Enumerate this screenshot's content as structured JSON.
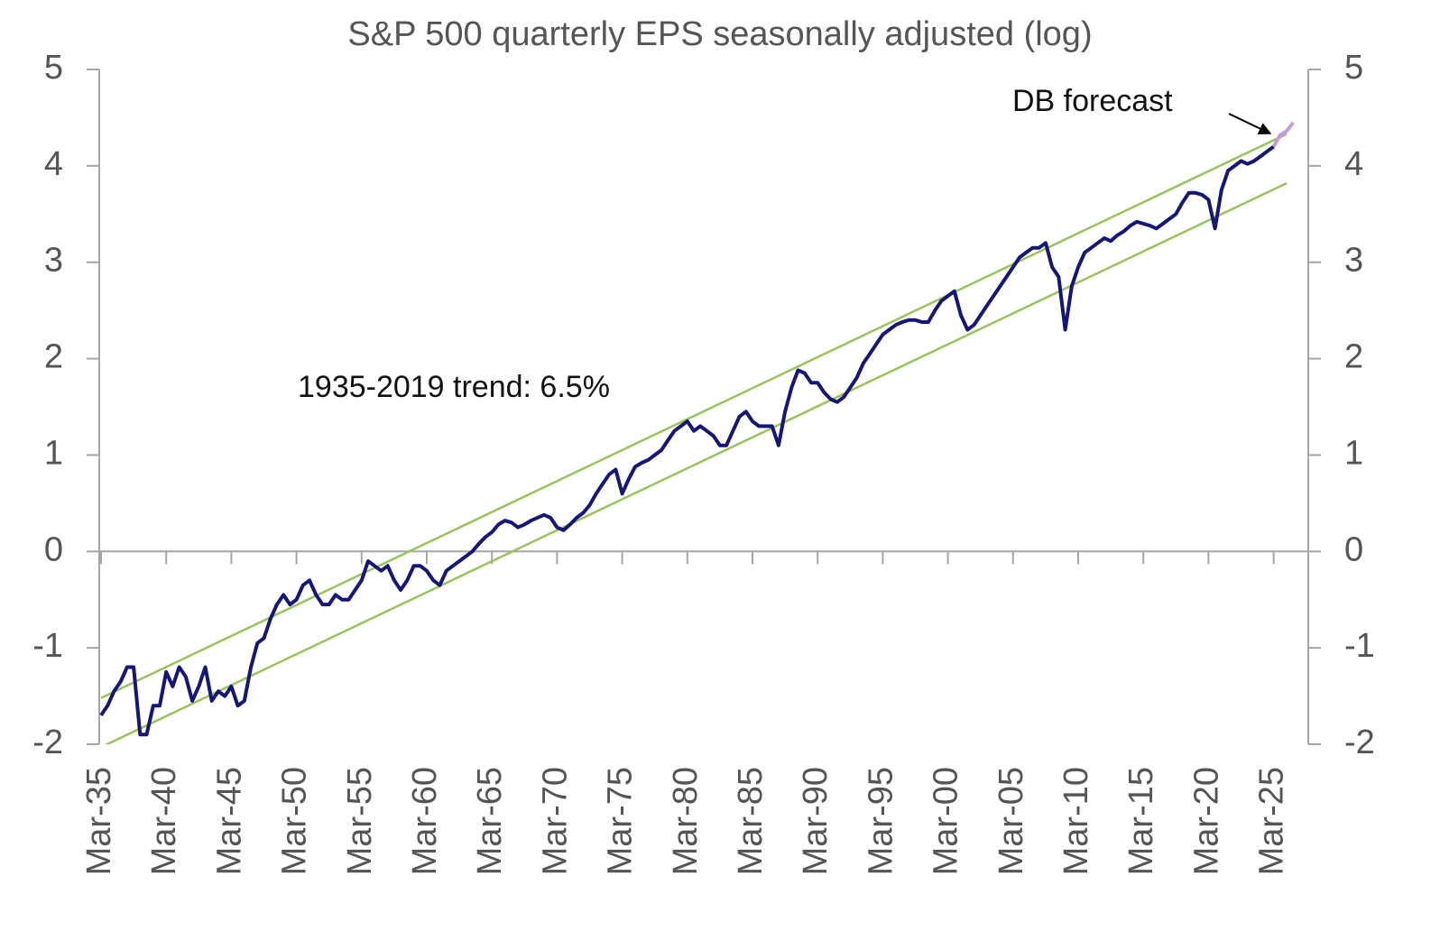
{
  "chart_data": {
    "type": "line",
    "title": "S&P 500 quarterly EPS seasonally adjusted (log)",
    "annotations": [
      "1935-2019 trend: 6.5%",
      "DB forecast"
    ],
    "categories": [
      "Mar-35",
      null,
      null,
      null,
      null,
      null,
      null,
      null,
      null,
      null,
      "Mar-40",
      null,
      null,
      null,
      null,
      null,
      null,
      null,
      null,
      null,
      "Mar-45",
      null,
      null,
      null,
      null,
      null,
      null,
      null,
      null,
      null,
      "Mar-50",
      null,
      null,
      null,
      null,
      null,
      null,
      null,
      null,
      null,
      "Mar-55",
      null,
      null,
      null,
      null,
      null,
      null,
      null,
      null,
      null,
      "Mar-60",
      null,
      null,
      null,
      null,
      null,
      null,
      null,
      null,
      null,
      "Mar-65",
      null,
      null,
      null,
      null,
      null,
      null,
      null,
      null,
      null,
      "Mar-70",
      null,
      null,
      null,
      null,
      null,
      null,
      null,
      null,
      null,
      "Mar-75",
      null,
      null,
      null,
      null,
      null,
      null,
      null,
      null,
      null,
      "Mar-80",
      null,
      null,
      null,
      null,
      null,
      null,
      null,
      null,
      null,
      "Mar-85",
      null,
      null,
      null,
      null,
      null,
      null,
      null,
      null,
      null,
      "Mar-90",
      null,
      null,
      null,
      null,
      null,
      null,
      null,
      null,
      null,
      "Mar-95",
      null,
      null,
      null,
      null,
      null,
      null,
      null,
      null,
      null,
      "Mar-00",
      null,
      null,
      null,
      null,
      null,
      null,
      null,
      null,
      null,
      "Mar-05",
      null,
      null,
      null,
      null,
      null,
      null,
      null,
      null,
      null,
      "Mar-10",
      null,
      null,
      null,
      null,
      null,
      null,
      null,
      null,
      null,
      "Mar-15",
      null,
      null,
      null,
      null,
      null,
      null,
      null,
      null,
      null,
      "Mar-20",
      null,
      null,
      null,
      null,
      null,
      null,
      null,
      null,
      null,
      "Mar-25",
      null,
      null,
      null,
      null,
      null
    ],
    "series": [
      {
        "color": "#16167a",
        "values": [
          -1.7,
          -1.6,
          -1.45,
          -1.35,
          -1.2,
          -1.2,
          -1.9,
          -1.9,
          -1.6,
          -1.6,
          -1.25,
          -1.4,
          -1.2,
          -1.3,
          -1.55,
          -1.4,
          -1.2,
          -1.55,
          -1.45,
          -1.5,
          -1.4,
          -1.6,
          -1.55,
          -1.2,
          -0.95,
          -0.9,
          -0.7,
          -0.55,
          -0.45,
          -0.55,
          -0.5,
          -0.35,
          -0.3,
          -0.45,
          -0.55,
          -0.55,
          -0.45,
          -0.5,
          -0.5,
          -0.4,
          -0.3,
          -0.1,
          -0.15,
          -0.2,
          -0.15,
          -0.3,
          -0.4,
          -0.3,
          -0.15,
          -0.15,
          -0.2,
          -0.3,
          -0.35,
          -0.2,
          -0.15,
          -0.1,
          -0.05,
          0,
          0.08,
          0.15,
          0.2,
          0.28,
          0.32,
          0.3,
          0.25,
          0.28,
          0.32,
          0.35,
          0.38,
          0.35,
          0.25,
          0.22,
          0.28,
          0.35,
          0.4,
          0.48,
          0.6,
          0.7,
          0.8,
          0.85,
          0.6,
          0.75,
          0.88,
          0.92,
          0.95,
          1.0,
          1.05,
          1.15,
          1.25,
          1.3,
          1.35,
          1.25,
          1.3,
          1.25,
          1.2,
          1.1,
          1.1,
          1.25,
          1.4,
          1.45,
          1.35,
          1.3,
          1.3,
          1.3,
          1.1,
          1.45,
          1.7,
          1.88,
          1.85,
          1.75,
          1.75,
          1.65,
          1.58,
          1.55,
          1.6,
          1.7,
          1.8,
          1.95,
          2.05,
          2.15,
          2.25,
          2.3,
          2.35,
          2.38,
          2.4,
          2.4,
          2.38,
          2.38,
          2.5,
          2.6,
          2.65,
          2.7,
          2.45,
          2.3,
          2.35,
          2.45,
          2.55,
          2.65,
          2.75,
          2.85,
          2.95,
          3.05,
          3.1,
          3.15,
          3.15,
          3.2,
          2.95,
          2.85,
          2.3,
          2.75,
          2.95,
          3.1,
          3.15,
          3.2,
          3.25,
          3.22,
          3.28,
          3.32,
          3.38,
          3.42,
          3.4,
          3.38,
          3.35,
          3.4,
          3.45,
          3.5,
          3.62,
          3.72,
          3.72,
          3.7,
          3.65,
          3.35,
          3.75,
          3.95,
          4.0,
          4.05,
          4.02,
          4.05,
          4.1,
          4.15,
          4.2,
          null,
          null,
          null,
          null,
          null
        ]
      },
      {
        "color": "#c39be0",
        "values": [
          null,
          null,
          null,
          null,
          null,
          null,
          null,
          null,
          null,
          null,
          null,
          null,
          null,
          null,
          null,
          null,
          null,
          null,
          null,
          null,
          null,
          null,
          null,
          null,
          null,
          null,
          null,
          null,
          null,
          null,
          null,
          null,
          null,
          null,
          null,
          null,
          null,
          null,
          null,
          null,
          null,
          null,
          null,
          null,
          null,
          null,
          null,
          null,
          null,
          null,
          null,
          null,
          null,
          null,
          null,
          null,
          null,
          null,
          null,
          null,
          null,
          null,
          null,
          null,
          null,
          null,
          null,
          null,
          null,
          null,
          null,
          null,
          null,
          null,
          null,
          null,
          null,
          null,
          null,
          null,
          null,
          null,
          null,
          null,
          null,
          null,
          null,
          null,
          null,
          null,
          null,
          null,
          null,
          null,
          null,
          null,
          null,
          null,
          null,
          null,
          null,
          null,
          null,
          null,
          null,
          null,
          null,
          null,
          null,
          null,
          null,
          null,
          null,
          null,
          null,
          null,
          null,
          null,
          null,
          null,
          null,
          null,
          null,
          null,
          null,
          null,
          null,
          null,
          null,
          null,
          null,
          null,
          null,
          null,
          null,
          null,
          null,
          null,
          null,
          null,
          null,
          null,
          null,
          null,
          null,
          null,
          null,
          null,
          null,
          null,
          null,
          null,
          null,
          null,
          null,
          null,
          null,
          null,
          null,
          null,
          null,
          null,
          null,
          null,
          null,
          null,
          null,
          null,
          null,
          null,
          null,
          null,
          null,
          null,
          null,
          null,
          null,
          null,
          null,
          null,
          4.2,
          4.32,
          4.36,
          4.45,
          null,
          null
        ]
      },
      {
        "color": "#9bc35a",
        "connect_nulls": true,
        "values": [
          -1.52,
          null,
          null,
          null,
          null,
          null,
          null,
          null,
          null,
          null,
          null,
          null,
          null,
          null,
          null,
          null,
          null,
          null,
          null,
          null,
          null,
          null,
          null,
          null,
          null,
          null,
          null,
          null,
          null,
          null,
          null,
          null,
          null,
          null,
          null,
          null,
          null,
          null,
          null,
          null,
          null,
          null,
          null,
          null,
          null,
          null,
          null,
          null,
          null,
          null,
          null,
          null,
          null,
          null,
          null,
          null,
          null,
          null,
          null,
          null,
          null,
          null,
          null,
          null,
          null,
          null,
          null,
          null,
          null,
          null,
          null,
          null,
          null,
          null,
          null,
          null,
          null,
          null,
          null,
          null,
          null,
          null,
          null,
          null,
          null,
          null,
          null,
          null,
          null,
          null,
          null,
          null,
          null,
          null,
          null,
          null,
          null,
          null,
          null,
          null,
          null,
          null,
          null,
          null,
          null,
          null,
          null,
          null,
          null,
          null,
          null,
          null,
          null,
          null,
          null,
          null,
          null,
          null,
          null,
          null,
          null,
          null,
          null,
          null,
          null,
          null,
          null,
          null,
          null,
          null,
          null,
          null,
          null,
          null,
          null,
          null,
          null,
          null,
          null,
          null,
          null,
          null,
          null,
          null,
          null,
          null,
          null,
          null,
          null,
          null,
          null,
          null,
          null,
          null,
          null,
          null,
          null,
          null,
          null,
          null,
          null,
          null,
          null,
          null,
          null,
          null,
          null,
          null,
          null,
          null,
          null,
          null,
          null,
          null,
          null,
          null,
          null,
          null,
          null,
          null,
          null,
          null,
          4.33,
          null,
          null,
          null
        ]
      },
      {
        "color": "#9bc35a",
        "connect_nulls": true,
        "values": [
          -2.03,
          null,
          null,
          null,
          null,
          null,
          null,
          null,
          null,
          null,
          null,
          null,
          null,
          null,
          null,
          null,
          null,
          null,
          null,
          null,
          null,
          null,
          null,
          null,
          null,
          null,
          null,
          null,
          null,
          null,
          null,
          null,
          null,
          null,
          null,
          null,
          null,
          null,
          null,
          null,
          null,
          null,
          null,
          null,
          null,
          null,
          null,
          null,
          null,
          null,
          null,
          null,
          null,
          null,
          null,
          null,
          null,
          null,
          null,
          null,
          null,
          null,
          null,
          null,
          null,
          null,
          null,
          null,
          null,
          null,
          null,
          null,
          null,
          null,
          null,
          null,
          null,
          null,
          null,
          null,
          null,
          null,
          null,
          null,
          null,
          null,
          null,
          null,
          null,
          null,
          null,
          null,
          null,
          null,
          null,
          null,
          null,
          null,
          null,
          null,
          null,
          null,
          null,
          null,
          null,
          null,
          null,
          null,
          null,
          null,
          null,
          null,
          null,
          null,
          null,
          null,
          null,
          null,
          null,
          null,
          null,
          null,
          null,
          null,
          null,
          null,
          null,
          null,
          null,
          null,
          null,
          null,
          null,
          null,
          null,
          null,
          null,
          null,
          null,
          null,
          null,
          null,
          null,
          null,
          null,
          null,
          null,
          null,
          null,
          null,
          null,
          null,
          null,
          null,
          null,
          null,
          null,
          null,
          null,
          null,
          null,
          null,
          null,
          null,
          null,
          null,
          null,
          null,
          null,
          null,
          null,
          null,
          null,
          null,
          null,
          null,
          null,
          null,
          null,
          null,
          null,
          null,
          3.82,
          null,
          null,
          null
        ]
      }
    ],
    "ylim": [
      -2,
      5
    ],
    "yticks": [
      -2,
      -1,
      0,
      1,
      2,
      3,
      4,
      5
    ],
    "y2lim": [
      -2,
      5
    ],
    "y2ticks": [
      -2,
      -1,
      0,
      1,
      2,
      3,
      4,
      5
    ]
  }
}
